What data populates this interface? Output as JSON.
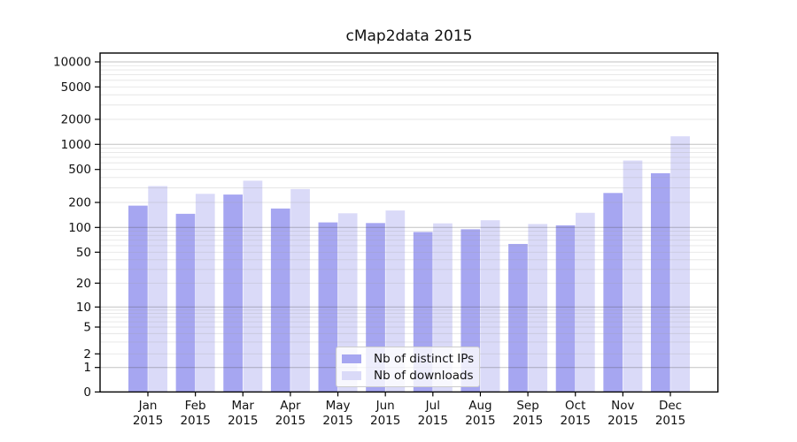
{
  "title": "cMap2data 2015",
  "chart_data": {
    "type": "bar",
    "title": "cMap2data 2015",
    "categories": [
      "Jan",
      "Feb",
      "Mar",
      "Apr",
      "May",
      "Jun",
      "Jul",
      "Aug",
      "Sep",
      "Oct",
      "Nov",
      "Dec"
    ],
    "year_label": "2015",
    "series": [
      {
        "name": "Nb of distinct IPs",
        "color": "#a6a6f1",
        "values": [
          183,
          146,
          249,
          169,
          115,
          113,
          88,
          95,
          63,
          106,
          260,
          450
        ]
      },
      {
        "name": "Nb of downloads",
        "color": "#dadaf8",
        "values": [
          315,
          254,
          366,
          290,
          148,
          160,
          112,
          122,
          110,
          150,
          640,
          1250
        ]
      }
    ],
    "yscale": "symlog",
    "yticks": [
      0,
      1,
      2,
      5,
      10,
      20,
      50,
      100,
      200,
      500,
      1000,
      2000,
      5000,
      10000
    ],
    "ylim": [
      0,
      13000
    ],
    "grid": true,
    "legend_position": "lower center"
  }
}
